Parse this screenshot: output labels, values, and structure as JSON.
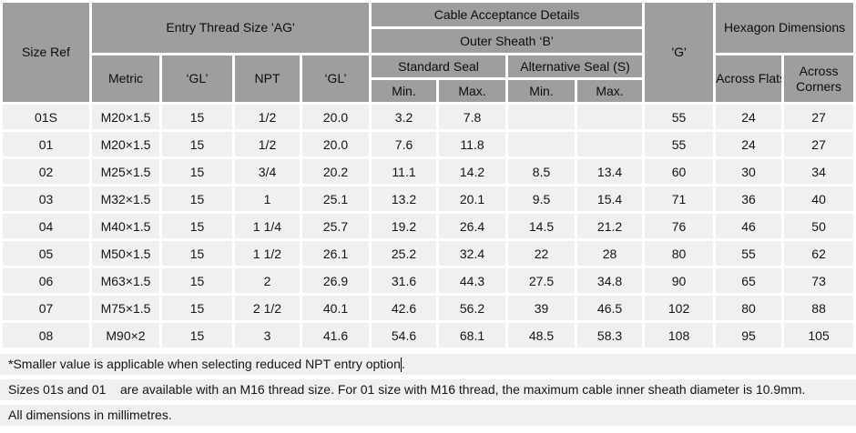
{
  "table": {
    "headers": {
      "size_ref": "Size Ref",
      "entry_thread": "Entry Thread Size 'AG'",
      "cable_acceptance": "Cable Acceptance Details",
      "outer_sheath": "Outer Sheath ‘B’",
      "standard_seal": "Standard Seal",
      "alternative_seal": "Alternative Seal (S)",
      "g": "'G'",
      "hexagon": "Hexagon Dimensions",
      "metric": "Metric",
      "gl_metric": "‘GL’",
      "npt": "NPT",
      "gl_npt": "‘GL’",
      "std_min": "Min.",
      "std_max": "Max.",
      "alt_min": "Min.",
      "alt_max": "Max.",
      "across_flats": "Across Flats",
      "across_corners": "Across Corners"
    },
    "rows": [
      [
        "01S",
        "M20×1.5",
        "15",
        "1/2",
        "20.0",
        "3.2",
        "7.8",
        "",
        "",
        "55",
        "24",
        "27"
      ],
      [
        "01",
        "M20×1.5",
        "15",
        "1/2",
        "20.0",
        "7.6",
        "11.8",
        "",
        "",
        "55",
        "24",
        "27"
      ],
      [
        "02",
        "M25×1.5",
        "15",
        "3/4",
        "20.2",
        "11.1",
        "14.2",
        "8.5",
        "13.4",
        "60",
        "30",
        "34"
      ],
      [
        "03",
        "M32×1.5",
        "15",
        "1",
        "25.1",
        "13.2",
        "20.1",
        "9.5",
        "15.4",
        "71",
        "36",
        "40"
      ],
      [
        "04",
        "M40×1.5",
        "15",
        "1 1/4",
        "25.7",
        "19.2",
        "26.4",
        "14.5",
        "21.2",
        "76",
        "46",
        "50"
      ],
      [
        "05",
        "M50×1.5",
        "15",
        "1 1/2",
        "26.1",
        "25.2",
        "32.4",
        "22",
        "28",
        "80",
        "55",
        "62"
      ],
      [
        "06",
        "M63×1.5",
        "15",
        "2",
        "26.9",
        "31.6",
        "44.3",
        "27.5",
        "34.8",
        "90",
        "65",
        "73"
      ],
      [
        "07",
        "M75×1.5",
        "15",
        "2 1/2",
        "40.1",
        "42.6",
        "56.2",
        "39",
        "46.5",
        "102",
        "80",
        "88"
      ],
      [
        "08",
        "M90×2",
        "15",
        "3",
        "41.6",
        "54.6",
        "68.1",
        "48.5",
        "58.3",
        "108",
        "95",
        "105"
      ]
    ]
  },
  "notes": [
    {
      "text": "*Smaller value is applicable when selecting reduced NPT entry option",
      "suffix": "."
    },
    {
      "text": "Sizes 01s and 01    are available with an M16 thread size. For 01 size with M16 thread, the maximum cable inner sheath diameter is 10.9mm."
    },
    {
      "text": "All dimensions in millimetres."
    }
  ]
}
